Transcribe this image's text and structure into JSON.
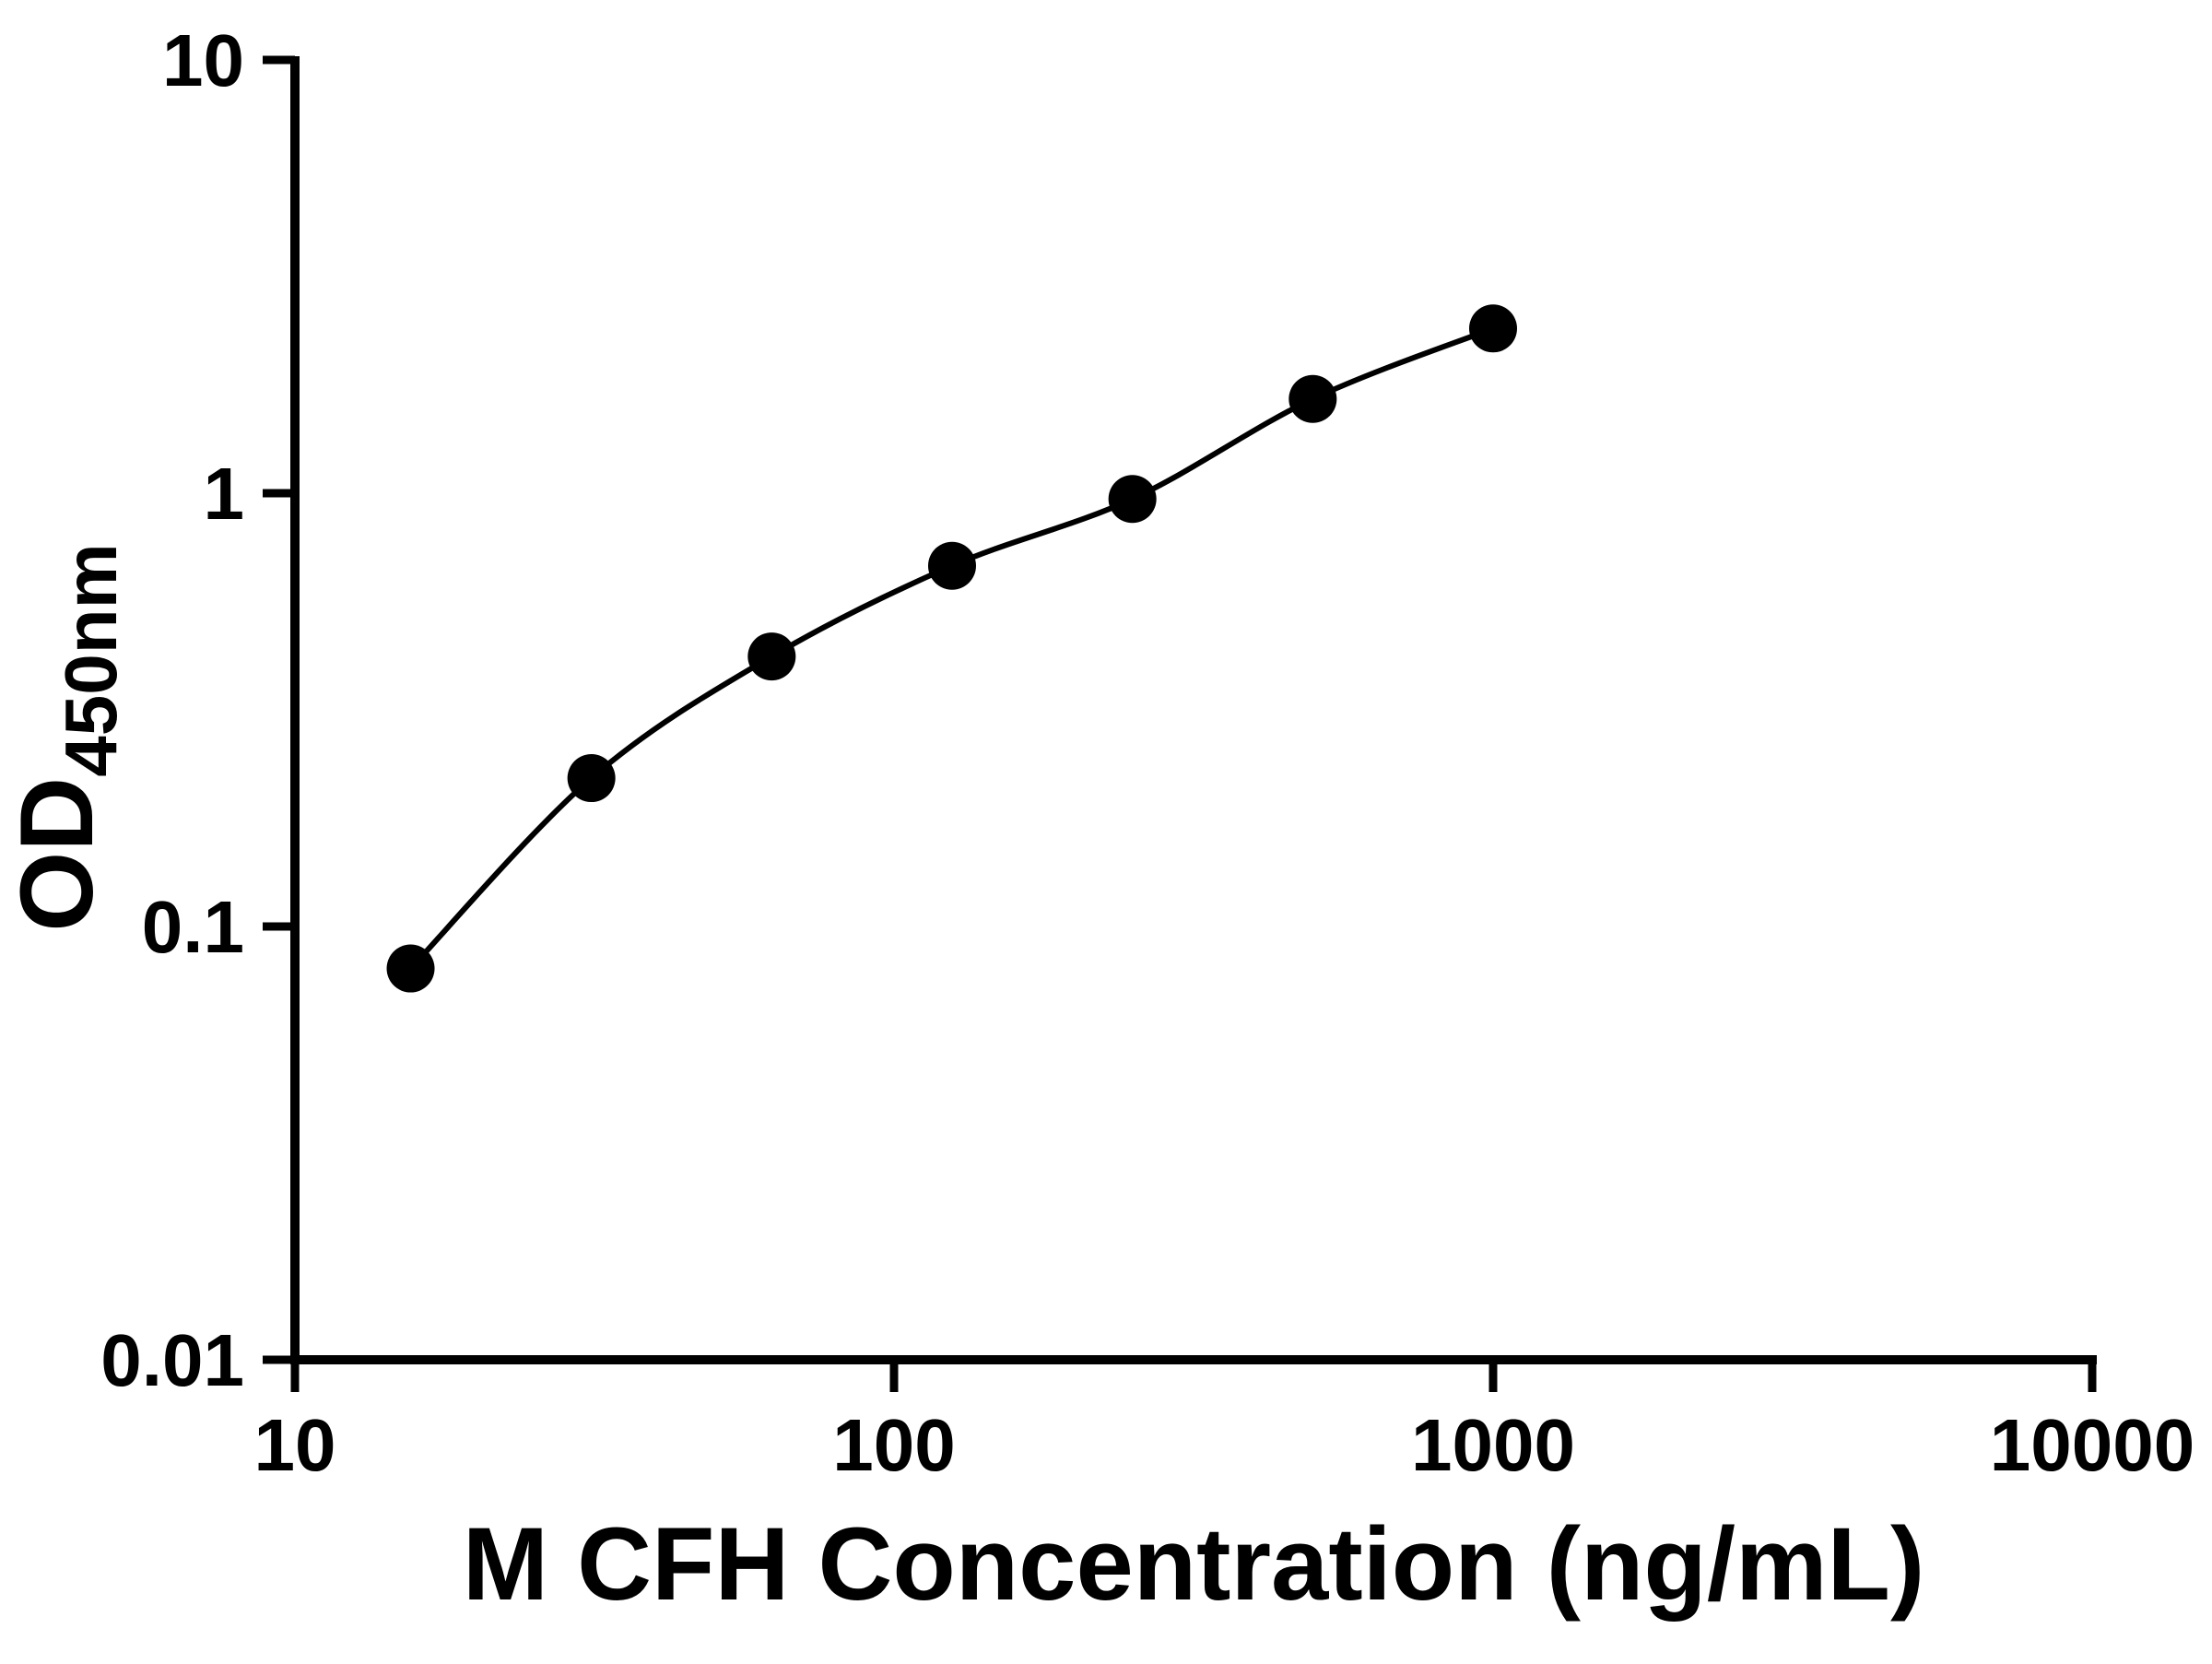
{
  "page": {
    "background_color": "#ffffff",
    "text_color": "#000000"
  },
  "chart_data": {
    "type": "scatter",
    "title": "",
    "xlabel": "M CFH Concentration (ng/mL)",
    "ylabel": "OD",
    "ylabel_subscript": "450nm",
    "xscale": "log",
    "yscale": "log",
    "xlim": [
      10,
      10000
    ],
    "ylim": [
      0.01,
      10
    ],
    "x_ticks": [
      10,
      100,
      1000,
      10000
    ],
    "x_tick_labels": [
      "10",
      "100",
      "1000",
      "10000"
    ],
    "y_ticks": [
      0.01,
      0.1,
      1,
      10
    ],
    "y_tick_labels": [
      "0.01",
      "0.1",
      "1",
      "10"
    ],
    "grid": false,
    "legend": false,
    "x": [
      15.6,
      31.25,
      62.5,
      125,
      250,
      500,
      1000
    ],
    "y": [
      0.08,
      0.22,
      0.42,
      0.68,
      0.97,
      1.65,
      2.4
    ],
    "marker": "circle",
    "marker_color": "#000000",
    "line_color": "#000000",
    "axis_color": "#000000"
  }
}
